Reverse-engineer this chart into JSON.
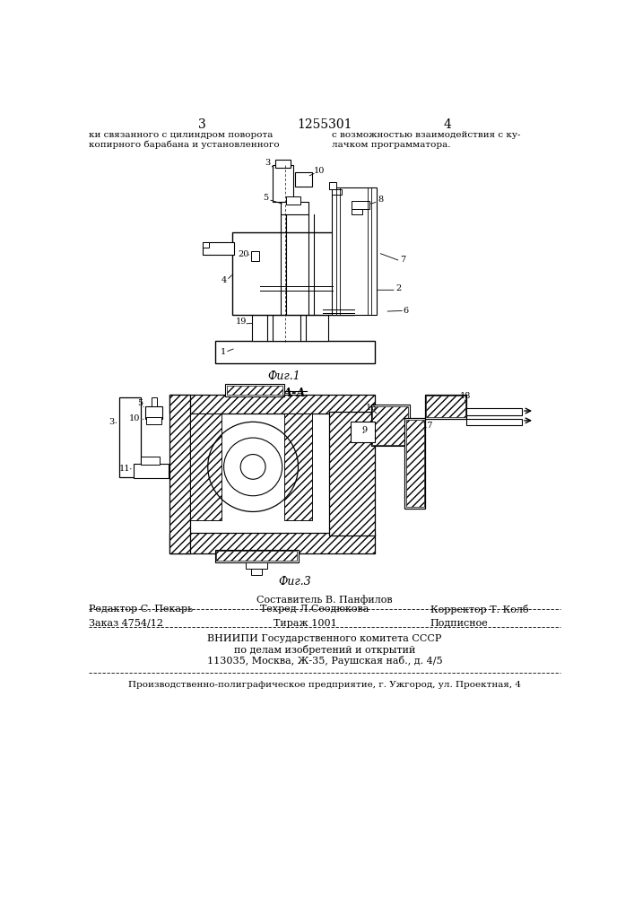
{
  "page_number_left": "3",
  "page_number_center": "1255301",
  "page_number_right": "4",
  "text_left_col_1": "ки связанного с цилиндром поворота",
  "text_left_col_2": "копирного барабана и установленного",
  "text_right_col_1": "с возможностью взаимодействия с ку-",
  "text_right_col_2": "лачком программатора.",
  "fig1_label": "Фиг.1",
  "fig3_label": "Фиг.3",
  "section_label": "А-А",
  "editor_line1": "Составитель В. Панфилов",
  "editor_line2_left": "Редактор С. Пекарь",
  "editor_line2_center": "Техред Л.Сеодюкова",
  "editor_line2_right": "Корректор Т. Колб",
  "order_left": "Заказ 4754/12",
  "order_center": "Тираж 1001",
  "order_right": "Подписное",
  "vniiipi_line1": "ВНИИПИ Государственного комитета СССР",
  "vniiipi_line2": "по делам изобретений и открытий",
  "vniiipi_line3": "113035, Москва, Ж-35, Раушская наб., д. 4/5",
  "production_line": "Производственно-полиграфическое предприятие, г. Ужгород, ул. Проектная, 4",
  "bg_color": "#ffffff",
  "text_color": "#000000",
  "line_color": "#000000"
}
